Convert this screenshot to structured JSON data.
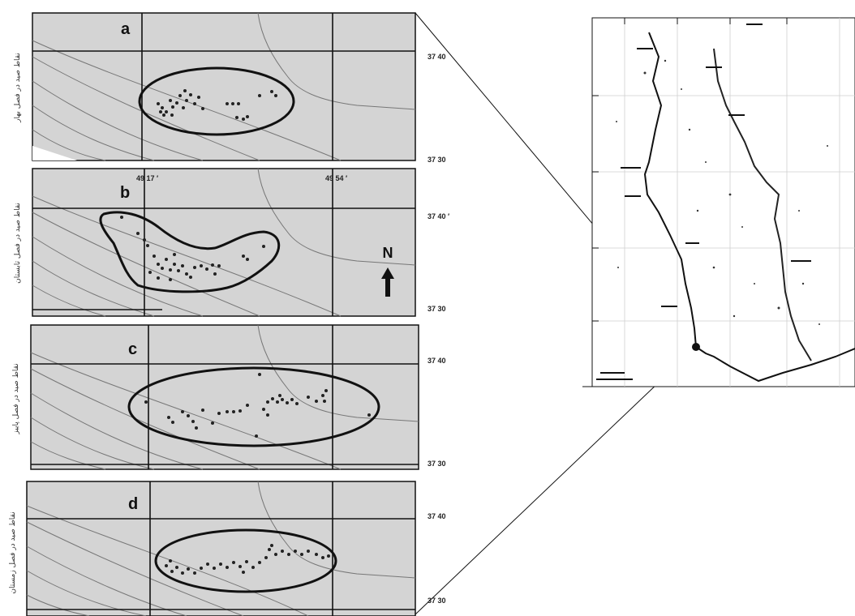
{
  "panels": [
    {
      "letter": "a",
      "season_label": "نقاط صید در فصل بهار",
      "lat_top": "37 40",
      "lat_bottom": "37 30"
    },
    {
      "letter": "b",
      "season_label": "نقاط صید در فصل تابستان",
      "lat_top": "37 40 ′",
      "lat_bottom": "37 30"
    },
    {
      "letter": "c",
      "season_label": "نقاط صید در فصل پاییز",
      "lat_top": "37 40",
      "lat_bottom": "37 30"
    },
    {
      "letter": "d",
      "season_label": "نقاط صید در فصل زمستان",
      "lat_top": "37 40",
      "lat_bottom": "37 30"
    }
  ],
  "longitudes": [
    "49 17 ′",
    "49 54 ′"
  ],
  "north_label": "N",
  "colors": {
    "panel_fill": "#d4d4d4",
    "line": "#111111",
    "contour": "#777777"
  }
}
